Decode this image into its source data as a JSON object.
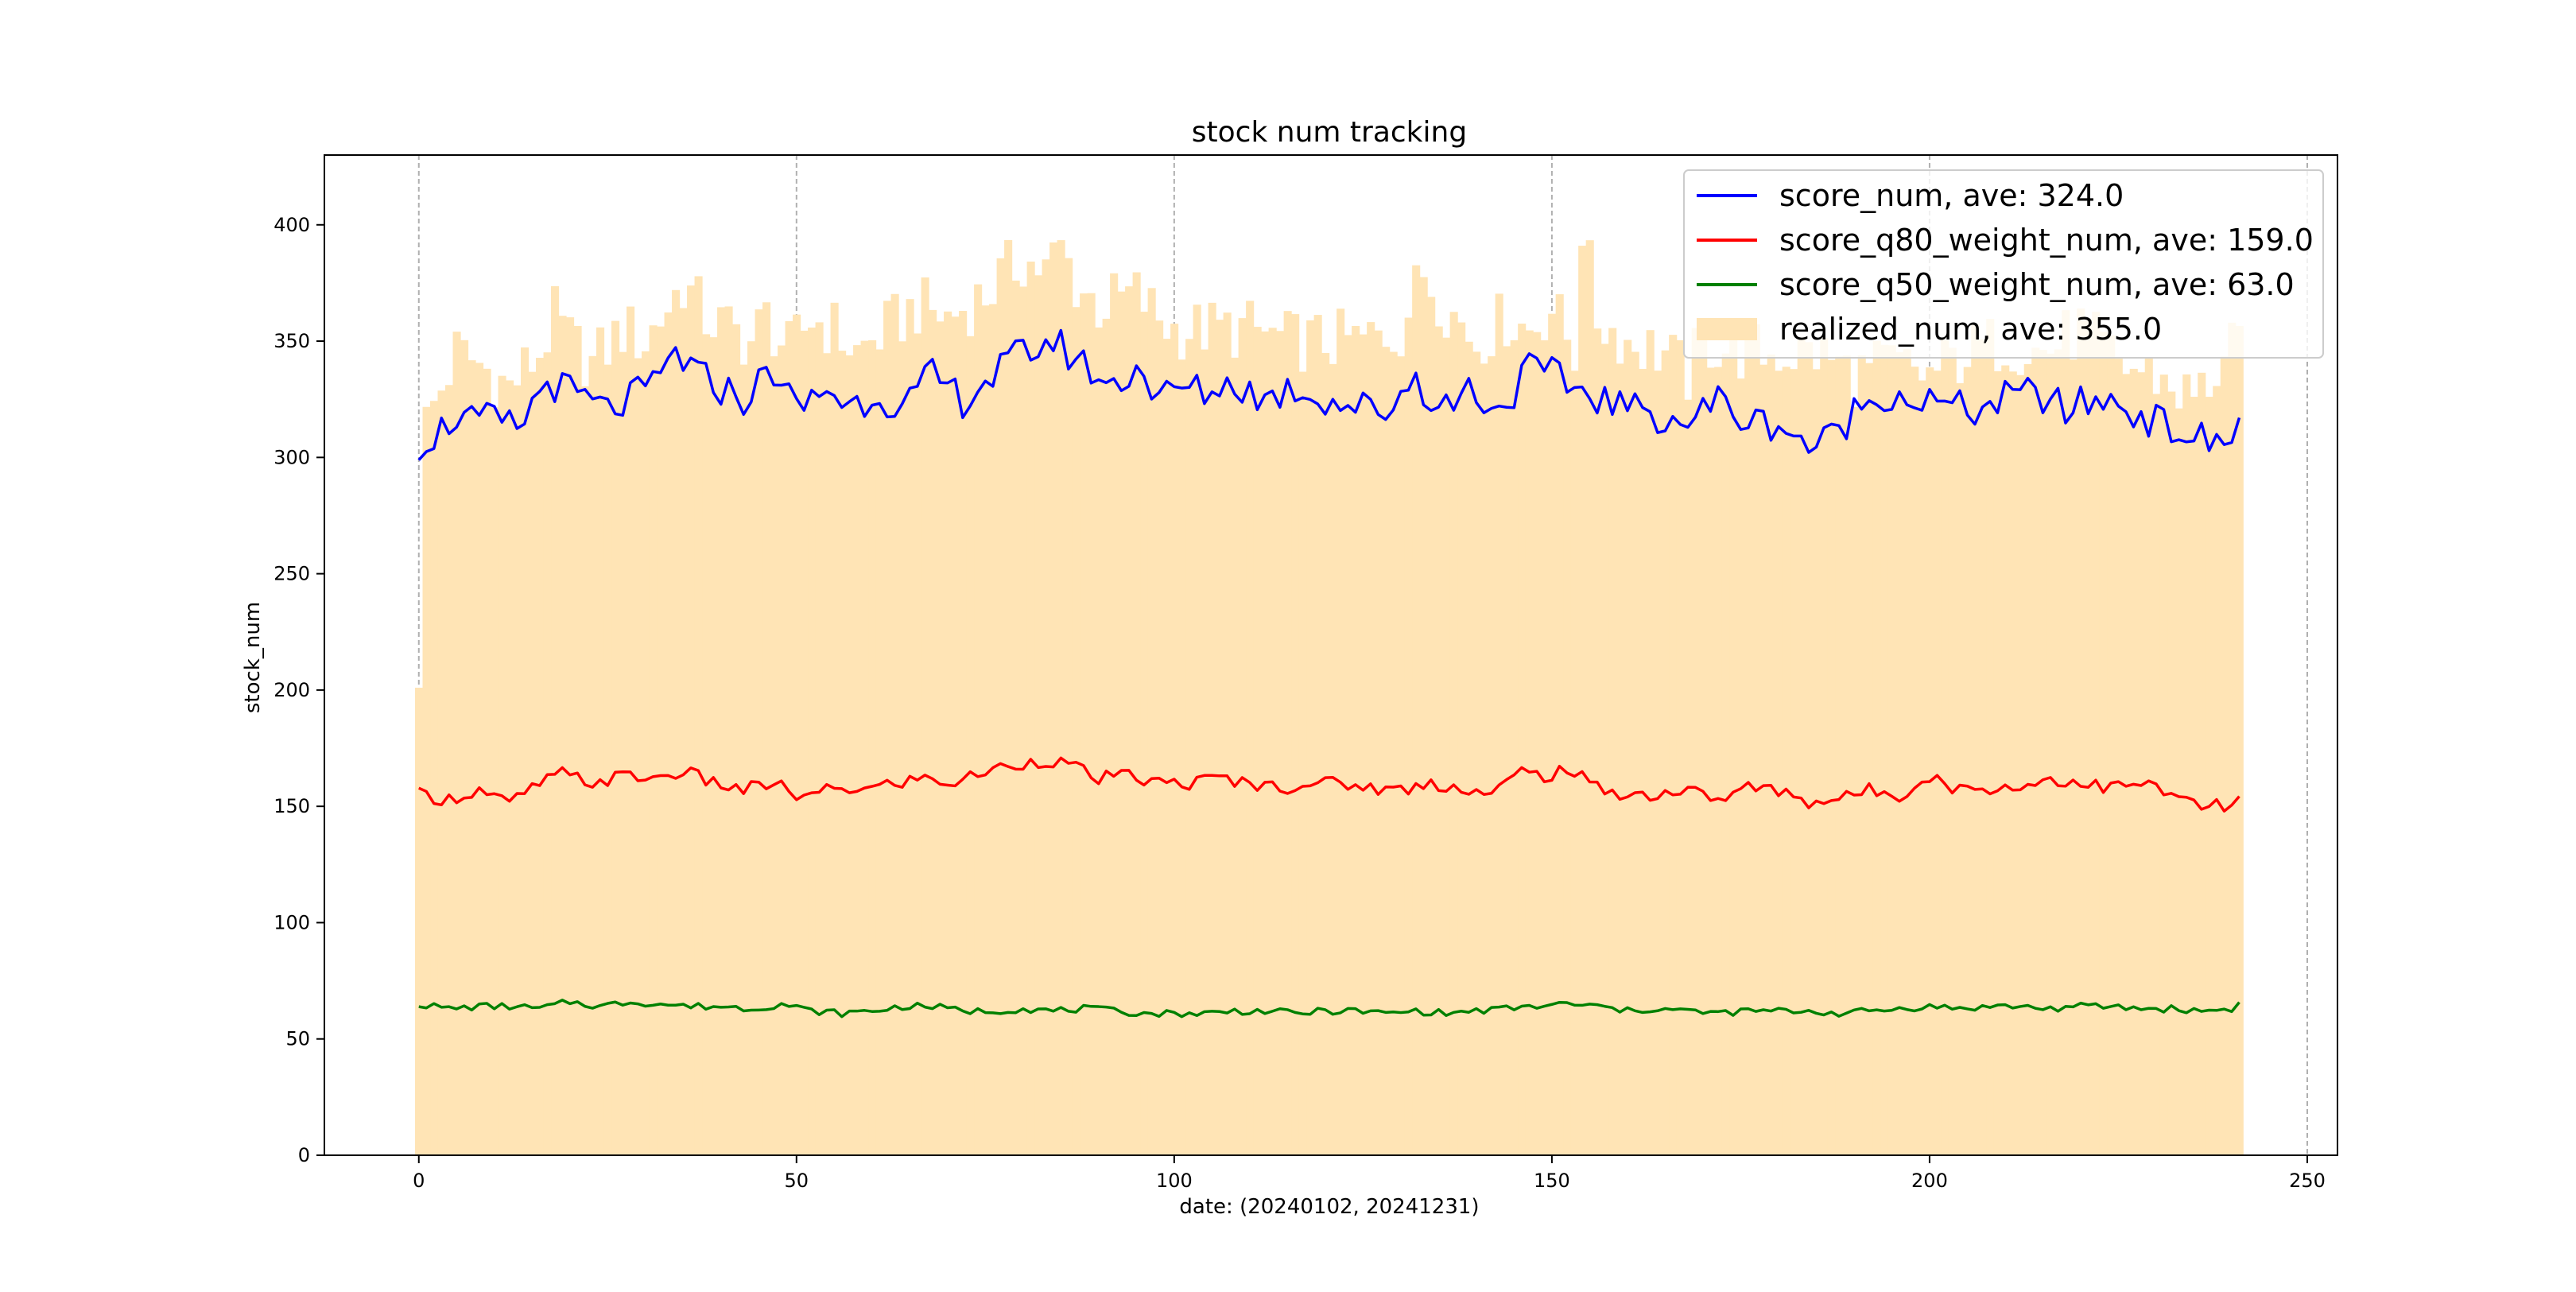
{
  "chart_data": {
    "type": "bar+line",
    "title": "stock num tracking",
    "xlabel": "date: (20240102, 20241231)",
    "ylabel": "stock_num",
    "xlim": [
      -12.5,
      254
    ],
    "ylim": [
      0,
      430
    ],
    "xticks": [
      0,
      50,
      100,
      150,
      200,
      250
    ],
    "yticks": [
      0,
      50,
      100,
      150,
      200,
      250,
      300,
      350,
      400
    ],
    "grid": "vertical dashed at x ticks",
    "legend_position": "top-right",
    "n_points": 242,
    "colors": {
      "score_num": "#0000ff",
      "score_q80_weight_num": "#ff0000",
      "score_q50_weight_num": "#008000",
      "realized_num": "#ffe4b5"
    },
    "bars": {
      "name": "realized_num, ave: 355.0",
      "anchors_x": [
        0,
        1,
        3,
        5,
        8,
        12,
        16,
        18,
        20,
        23,
        27,
        30,
        33,
        35,
        38,
        41,
        44,
        46,
        49,
        52,
        55,
        58,
        62,
        66,
        70,
        75,
        78,
        80,
        83,
        85,
        87,
        90,
        95,
        98,
        100,
        105,
        110,
        115,
        120,
        125,
        130,
        133,
        136,
        140,
        144,
        147,
        150,
        153,
        154,
        156,
        160,
        165,
        168,
        170,
        175,
        180,
        185,
        188,
        190,
        195,
        200,
        205,
        210,
        215,
        220,
        225,
        230,
        235,
        240,
        241
      ],
      "anchors_y": [
        201,
        315,
        330,
        345,
        340,
        330,
        345,
        360,
        350,
        340,
        355,
        350,
        365,
        375,
        360,
        355,
        350,
        360,
        345,
        360,
        355,
        345,
        355,
        365,
        360,
        370,
        380,
        385,
        380,
        390,
        375,
        365,
        370,
        360,
        355,
        355,
        355,
        350,
        350,
        350,
        355,
        380,
        365,
        350,
        360,
        355,
        365,
        345,
        400,
        360,
        350,
        345,
        335,
        350,
        345,
        345,
        345,
        340,
        335,
        340,
        335,
        345,
        350,
        345,
        355,
        340,
        335,
        325,
        345,
        345
      ]
    },
    "series": [
      {
        "name": "score_num, ave: 324.0",
        "color": "#0000ff",
        "anchors_x": [
          0,
          3,
          5,
          7,
          10,
          13,
          17,
          20,
          25,
          28,
          31,
          34,
          37,
          40,
          43,
          47,
          50,
          54,
          57,
          61,
          64,
          68,
          72,
          76,
          80,
          84,
          88,
          92,
          95,
          98,
          101,
          104,
          108,
          112,
          116,
          120,
          124,
          128,
          132,
          135,
          139,
          143,
          147,
          150,
          153,
          157,
          161,
          165,
          168,
          172,
          176,
          180,
          184,
          187,
          190,
          194,
          198,
          202,
          206,
          210,
          214,
          218,
          222,
          226,
          230,
          234,
          238,
          240,
          241
        ],
        "anchors_y": [
          306,
          312,
          318,
          315,
          316,
          312,
          333,
          328,
          320,
          325,
          330,
          345,
          335,
          330,
          325,
          338,
          320,
          330,
          322,
          328,
          320,
          335,
          325,
          335,
          345,
          350,
          340,
          330,
          340,
          325,
          330,
          328,
          332,
          325,
          330,
          325,
          322,
          320,
          335,
          320,
          330,
          320,
          338,
          335,
          330,
          325,
          320,
          318,
          315,
          325,
          315,
          315,
          305,
          308,
          320,
          328,
          325,
          322,
          320,
          325,
          328,
          320,
          325,
          322,
          315,
          310,
          305,
          308,
          320
        ]
      },
      {
        "name": "score_q80_weight_num, ave: 159.0",
        "color": "#ff0000",
        "anchors_x": [
          0,
          4,
          8,
          12,
          16,
          19,
          23,
          27,
          31,
          35,
          39,
          43,
          47,
          51,
          55,
          59,
          63,
          67,
          71,
          75,
          79,
          83,
          86,
          90,
          94,
          98,
          102,
          106,
          110,
          114,
          118,
          122,
          126,
          130,
          134,
          138,
          142,
          146,
          149,
          152,
          156,
          160,
          164,
          168,
          172,
          176,
          180,
          184,
          188,
          192,
          196,
          200,
          204,
          208,
          212,
          216,
          220,
          224,
          228,
          232,
          236,
          240,
          241
        ],
        "anchors_y": [
          155,
          153,
          157,
          151,
          160,
          164,
          160,
          163,
          162,
          165,
          160,
          157,
          160,
          153,
          158,
          157,
          160,
          162,
          160,
          165,
          168,
          170,
          168,
          162,
          163,
          160,
          160,
          162,
          160,
          158,
          160,
          160,
          158,
          157,
          160,
          158,
          155,
          165,
          163,
          166,
          158,
          155,
          155,
          157,
          153,
          158,
          157,
          152,
          153,
          157,
          155,
          163,
          157,
          158,
          158,
          162,
          160,
          158,
          160,
          155,
          150,
          150,
          153
        ]
      },
      {
        "name": "score_q50_weight_num, ave: 63.0",
        "color": "#008000",
        "anchors_x": [
          0,
          4,
          8,
          12,
          16,
          20,
          24,
          28,
          32,
          36,
          40,
          44,
          48,
          52,
          56,
          60,
          64,
          68,
          72,
          76,
          80,
          84,
          88,
          92,
          96,
          100,
          104,
          108,
          112,
          116,
          120,
          124,
          128,
          132,
          136,
          140,
          144,
          148,
          152,
          156,
          160,
          164,
          168,
          172,
          176,
          180,
          184,
          188,
          192,
          196,
          200,
          204,
          208,
          212,
          216,
          220,
          224,
          228,
          232,
          236,
          240,
          241
        ],
        "anchors_y": [
          65,
          63,
          64,
          64,
          63,
          66,
          64,
          66,
          65,
          64,
          64,
          63,
          65,
          62,
          61,
          62,
          64,
          64,
          62,
          62,
          63,
          62,
          63,
          62,
          61,
          61,
          61,
          62,
          62,
          61,
          62,
          62,
          61,
          62,
          61,
          62,
          63,
          64,
          65,
          64,
          62,
          63,
          62,
          61,
          62,
          62,
          62,
          61,
          62,
          63,
          64,
          63,
          64,
          64,
          63,
          64,
          64,
          63,
          63,
          62,
          63,
          65
        ]
      }
    ]
  }
}
